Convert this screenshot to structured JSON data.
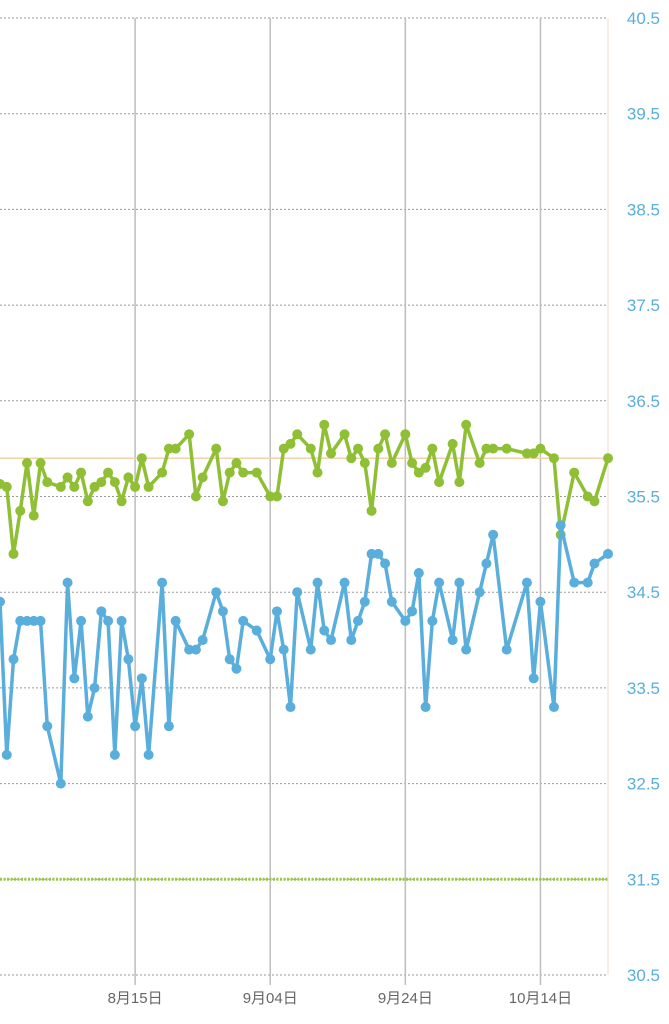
{
  "chart_data": {
    "type": "line",
    "title": "",
    "xlabel": "",
    "ylabel": "",
    "ylim": [
      30.5,
      40.5
    ],
    "xlim": [
      "07-26",
      "10-24"
    ],
    "grid": true,
    "y_ticks": [
      "40.5",
      "39.5",
      "38.5",
      "37.5",
      "36.5",
      "35.5",
      "34.5",
      "33.5",
      "32.5",
      "31.5",
      "30.5"
    ],
    "x_ticks": [
      {
        "date": "08-15",
        "label": "8月15日"
      },
      {
        "date": "09-04",
        "label": "9月04日"
      },
      {
        "date": "09-24",
        "label": "9月24日"
      },
      {
        "date": "10-14",
        "label": "10月14日"
      }
    ],
    "reference_lines": [
      {
        "value": 35.9,
        "color": "#f0d2a8",
        "style": "solid"
      },
      {
        "value": 31.5,
        "color": "#9cc44a",
        "style": "dotted"
      }
    ],
    "series": [
      {
        "name": "green",
        "color": "#8fbf35",
        "x": [
          "07-26",
          "07-27",
          "07-28",
          "07-29",
          "07-30",
          "07-31",
          "08-01",
          "08-02",
          "08-04",
          "08-05",
          "08-06",
          "08-07",
          "08-08",
          "08-09",
          "08-10",
          "08-11",
          "08-12",
          "08-13",
          "08-14",
          "08-15",
          "08-16",
          "08-17",
          "08-19",
          "08-20",
          "08-21",
          "08-23",
          "08-24",
          "08-25",
          "08-27",
          "08-28",
          "08-29",
          "08-30",
          "08-31",
          "09-02",
          "09-04",
          "09-05",
          "09-06",
          "09-07",
          "09-08",
          "09-10",
          "09-11",
          "09-12",
          "09-13",
          "09-15",
          "09-16",
          "09-17",
          "09-18",
          "09-19",
          "09-20",
          "09-21",
          "09-22",
          "09-24",
          "09-25",
          "09-26",
          "09-27",
          "09-28",
          "09-29",
          "10-01",
          "10-02",
          "10-03",
          "10-05",
          "10-06",
          "10-07",
          "10-09",
          "10-12",
          "10-13",
          "10-14",
          "10-16",
          "10-17",
          "10-19",
          "10-21",
          "10-22",
          "10-24"
        ],
        "values": [
          35.63,
          35.6,
          34.9,
          35.35,
          35.85,
          35.3,
          35.85,
          35.65,
          35.6,
          35.7,
          35.6,
          35.75,
          35.45,
          35.6,
          35.65,
          35.75,
          35.65,
          35.45,
          35.7,
          35.6,
          35.9,
          35.6,
          35.75,
          36.0,
          36.0,
          36.15,
          35.5,
          35.7,
          36.0,
          35.45,
          35.75,
          35.85,
          35.75,
          35.75,
          35.5,
          35.5,
          36.0,
          36.05,
          36.15,
          36.0,
          35.75,
          36.25,
          35.95,
          36.15,
          35.9,
          36.0,
          35.85,
          35.35,
          36.0,
          36.15,
          35.85,
          36.15,
          35.85,
          35.75,
          35.8,
          36.0,
          35.65,
          36.05,
          35.65,
          36.25,
          35.85,
          36.0,
          36.0,
          36.0,
          35.95,
          35.95,
          36.0,
          35.9,
          35.1,
          35.75,
          35.5,
          35.45,
          35.9
        ]
      },
      {
        "name": "blue",
        "color": "#5aaedc",
        "x": [
          "07-26",
          "07-27",
          "07-28",
          "07-29",
          "07-30",
          "07-31",
          "08-01",
          "08-02",
          "08-04",
          "08-05",
          "08-06",
          "08-07",
          "08-08",
          "08-09",
          "08-10",
          "08-11",
          "08-12",
          "08-13",
          "08-14",
          "08-15",
          "08-16",
          "08-17",
          "08-19",
          "08-20",
          "08-21",
          "08-23",
          "08-24",
          "08-25",
          "08-27",
          "08-28",
          "08-29",
          "08-30",
          "08-31",
          "09-02",
          "09-04",
          "09-05",
          "09-06",
          "09-07",
          "09-08",
          "09-10",
          "09-11",
          "09-12",
          "09-13",
          "09-15",
          "09-16",
          "09-17",
          "09-18",
          "09-19",
          "09-20",
          "09-21",
          "09-22",
          "09-24",
          "09-25",
          "09-26",
          "09-27",
          "09-28",
          "09-29",
          "10-01",
          "10-02",
          "10-03",
          "10-05",
          "10-06",
          "10-07",
          "10-09",
          "10-12",
          "10-13",
          "10-14",
          "10-16",
          "10-17",
          "10-19",
          "10-21",
          "10-22",
          "10-24"
        ],
        "values": [
          34.4,
          32.8,
          33.8,
          34.2,
          34.2,
          34.2,
          34.2,
          33.1,
          32.5,
          34.6,
          33.6,
          34.2,
          33.2,
          33.5,
          34.3,
          34.2,
          32.8,
          34.2,
          33.8,
          33.1,
          33.6,
          32.8,
          34.6,
          33.1,
          34.2,
          33.9,
          33.9,
          34.0,
          34.5,
          34.3,
          33.8,
          33.7,
          34.2,
          34.1,
          33.8,
          34.3,
          33.9,
          33.3,
          34.5,
          33.9,
          34.6,
          34.1,
          34.0,
          34.6,
          34.0,
          34.2,
          34.4,
          34.9,
          34.9,
          34.8,
          34.4,
          34.2,
          34.3,
          34.7,
          33.3,
          34.2,
          34.6,
          34.0,
          34.6,
          33.9,
          34.5,
          34.8,
          35.1,
          33.9,
          34.6,
          33.6,
          34.4,
          33.3,
          35.2,
          34.6,
          34.6,
          34.8,
          34.9
        ]
      }
    ]
  }
}
